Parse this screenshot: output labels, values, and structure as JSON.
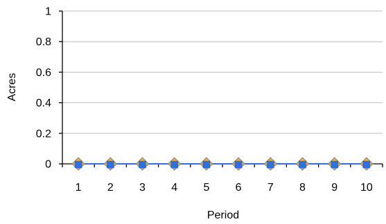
{
  "chart_data": {
    "type": "line",
    "xlabel": "Period",
    "ylabel": "Acres",
    "categories": [
      "1",
      "2",
      "3",
      "4",
      "5",
      "6",
      "7",
      "8",
      "9",
      "10"
    ],
    "ylim": [
      0,
      1
    ],
    "yticks": [
      "0",
      "0.2",
      "0.4",
      "0.6",
      "0.8",
      "1"
    ],
    "grid": true,
    "series": [
      {
        "marker": "diamond",
        "color": "#F2B134",
        "values": [
          0,
          0,
          0,
          0,
          0,
          0,
          0,
          0,
          0,
          0
        ]
      },
      {
        "marker": "square",
        "color": "#2F6FE0",
        "values": [
          0,
          0,
          0,
          0,
          0,
          0,
          0,
          0,
          0,
          0
        ]
      }
    ]
  }
}
